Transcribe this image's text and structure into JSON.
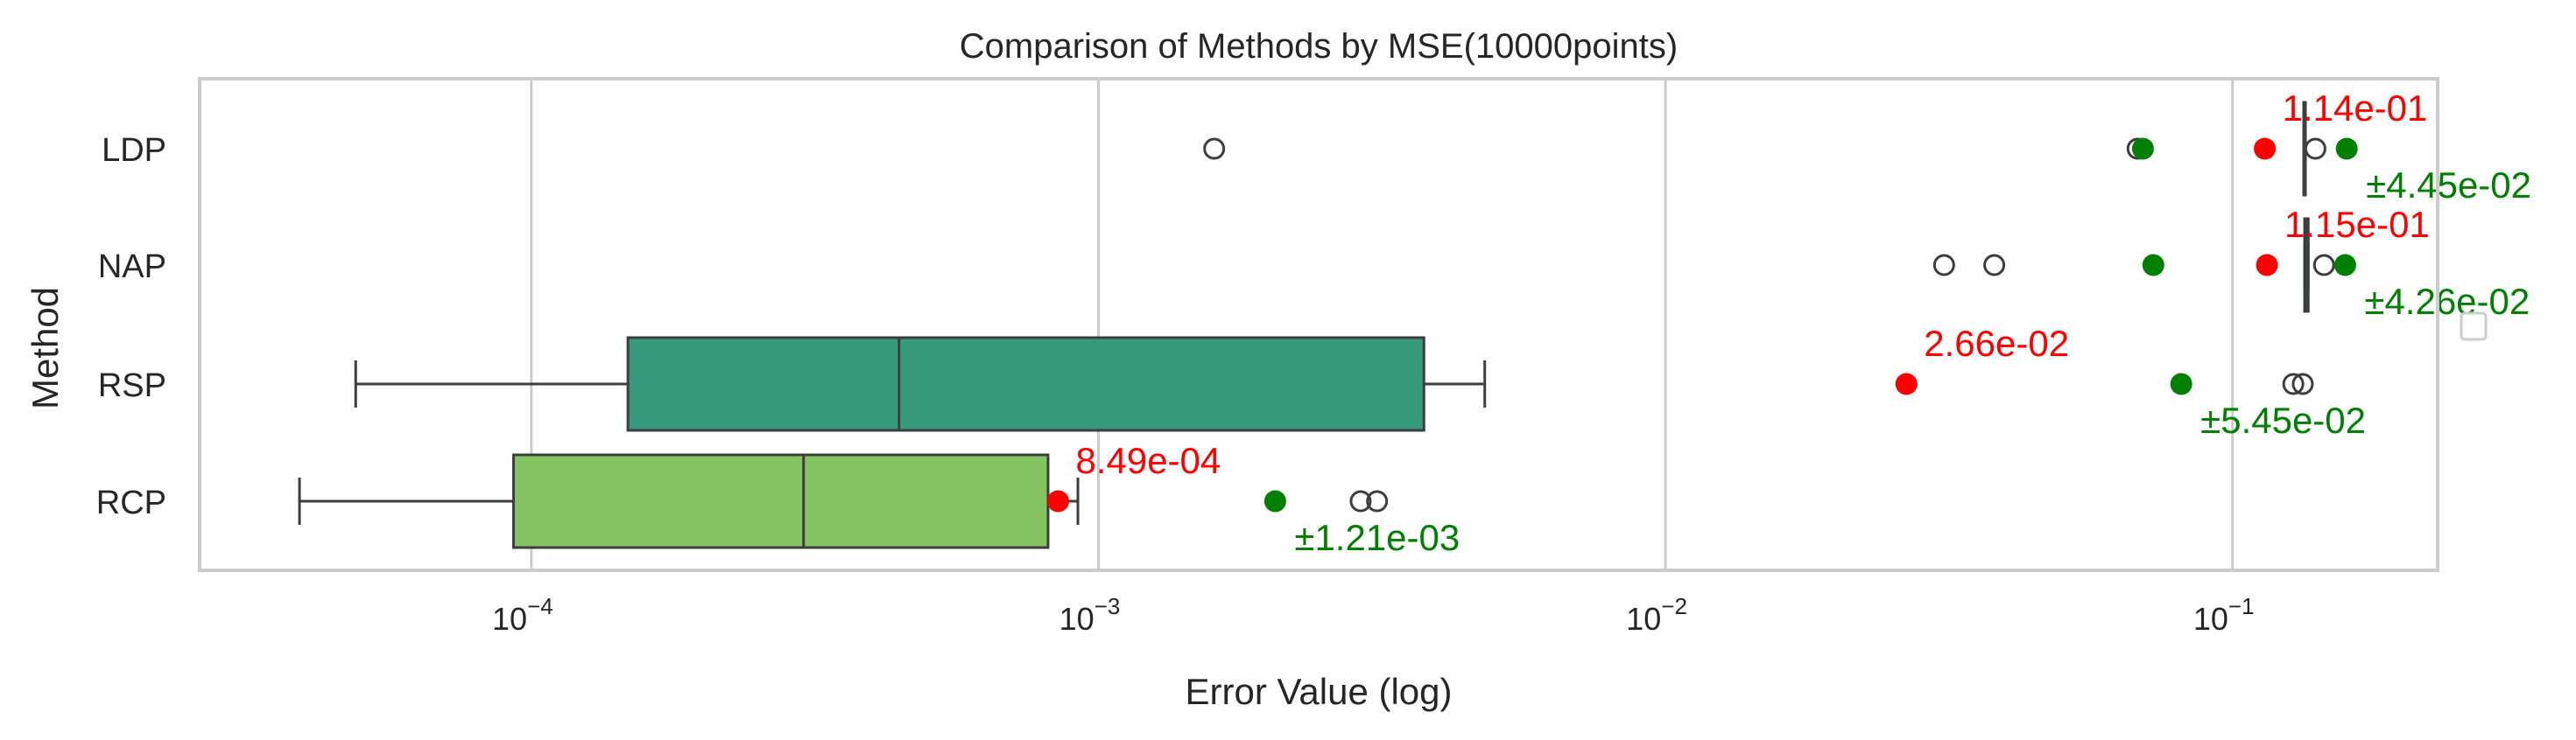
{
  "chart_data": {
    "type": "box",
    "title": "Comparison of Methods by MSE(10000points)",
    "xlabel": "Error Value (log)",
    "ylabel": "Method",
    "xscale": "log",
    "xlim": [
      2.6e-05,
      0.23
    ],
    "grid": true,
    "categories": [
      "LDP",
      "NAP",
      "RSP",
      "RCP"
    ],
    "x_ticks": [
      {
        "value": 0.0001,
        "base": "10",
        "exp": "−4"
      },
      {
        "value": 0.001,
        "base": "10",
        "exp": "−3"
      },
      {
        "value": 0.01,
        "base": "10",
        "exp": "−2"
      },
      {
        "value": 0.1,
        "base": "10",
        "exp": "−1"
      }
    ],
    "boxes": [
      {
        "method": "LDP",
        "whisker_low": 0.1335,
        "q1": 0.1335,
        "median": 0.1335,
        "q3": 0.1335,
        "whisker_high": 0.1335,
        "outliers": [
          0.0016,
          0.068,
          0.14
        ],
        "color": "#2c4e8a"
      },
      {
        "method": "NAP",
        "whisker_low": 0.134,
        "q1": 0.134,
        "median": 0.1345,
        "q3": 0.136,
        "whisker_high": 0.136,
        "outliers": [
          0.031,
          0.038,
          0.145
        ],
        "color": "#2c6e8a"
      },
      {
        "method": "RSP",
        "whisker_low": 4.9e-05,
        "q1": 0.000148,
        "median": 0.000445,
        "q3": 0.00375,
        "whisker_high": 0.0048,
        "outliers": [
          0.128,
          0.133
        ],
        "color": "#36997b"
      },
      {
        "method": "RCP",
        "whisker_low": 3.9e-05,
        "q1": 9.3e-05,
        "median": 0.000302,
        "q3": 0.000815,
        "whisker_high": 0.00092,
        "outliers": [
          0.0029,
          0.0031
        ],
        "color": "#84c462"
      }
    ],
    "means": [
      {
        "method": "LDP",
        "value": 0.114,
        "label": "1.14e-01"
      },
      {
        "method": "NAP",
        "value": 0.115,
        "label": "1.15e-01"
      },
      {
        "method": "RSP",
        "value": 0.0266,
        "label": "2.66e-02"
      },
      {
        "method": "RCP",
        "value": 0.000849,
        "label": "8.49e-04"
      }
    ],
    "std_markers": [
      {
        "method": "LDP",
        "points": [
          0.0695,
          0.159
        ],
        "label": "±4.45e-02"
      },
      {
        "method": "NAP",
        "points": [
          0.0725,
          0.158
        ],
        "label": "±4.26e-02"
      },
      {
        "method": "RSP",
        "points": [
          0.0812
        ],
        "label": "±5.45e-02"
      },
      {
        "method": "RCP",
        "points": [
          0.00205
        ],
        "label": "±1.21e-03"
      }
    ],
    "colors": {
      "mean": "#ff0000",
      "std": "#008000",
      "edge": "#3d3d3d",
      "grid": "#cccccc",
      "spine": "#cccccc"
    }
  }
}
